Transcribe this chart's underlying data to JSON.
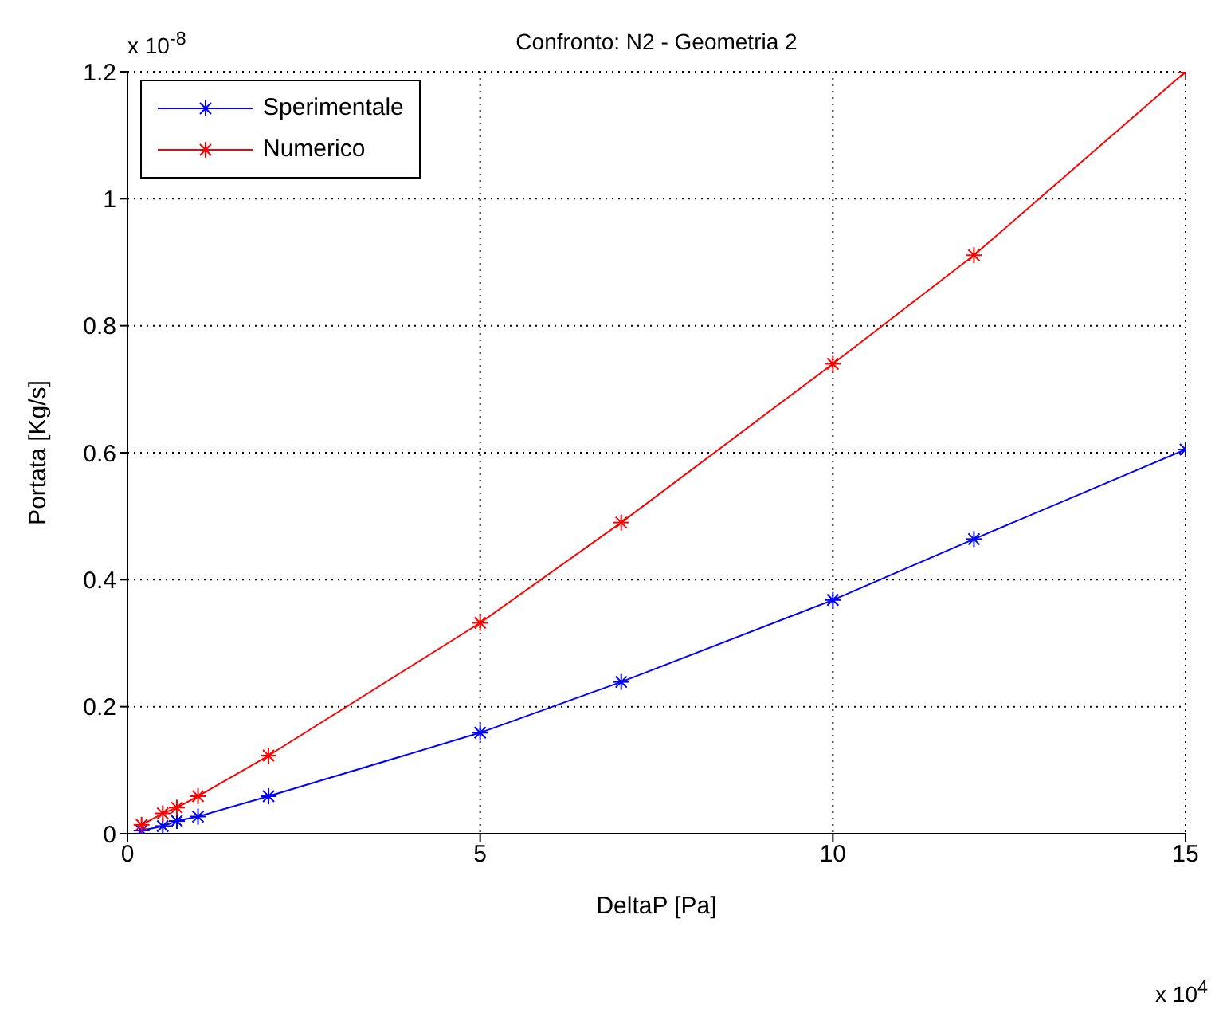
{
  "chart_data": {
    "type": "line",
    "title": "Confronto: N2 - Geometria 2",
    "xlabel": "DeltaP [Pa]",
    "ylabel": "Portata [Kg/s]",
    "annotations": [
      "x 10$^{-8}$",
      "x 10$^{4}$"
    ],
    "x": [
      0.2,
      0.5,
      0.7,
      1,
      2,
      5,
      7,
      10,
      12,
      15
    ],
    "series": [
      {
        "name": "Sperimentale",
        "color": "#0000ff",
        "values": [
          0.005,
          0.012,
          0.02,
          0.027,
          0.059,
          0.159,
          0.239,
          0.368,
          0.464,
          0.605
        ]
      },
      {
        "name": "Numerico",
        "color": "#ff0000",
        "values": [
          0.014,
          0.032,
          0.041,
          0.059,
          0.123,
          0.332,
          0.49,
          0.74,
          0.911,
          1.2
        ]
      }
    ],
    "xlim": [
      0,
      15
    ],
    "xticks": [
      0,
      5,
      10,
      15
    ],
    "ylim": [
      0,
      1.2
    ],
    "yticks": [
      0,
      0.2,
      0.4,
      0.6,
      0.8,
      1,
      1.2
    ],
    "grid": true,
    "legend": "top left",
    "marker": "cross",
    "line_style": "solid"
  }
}
